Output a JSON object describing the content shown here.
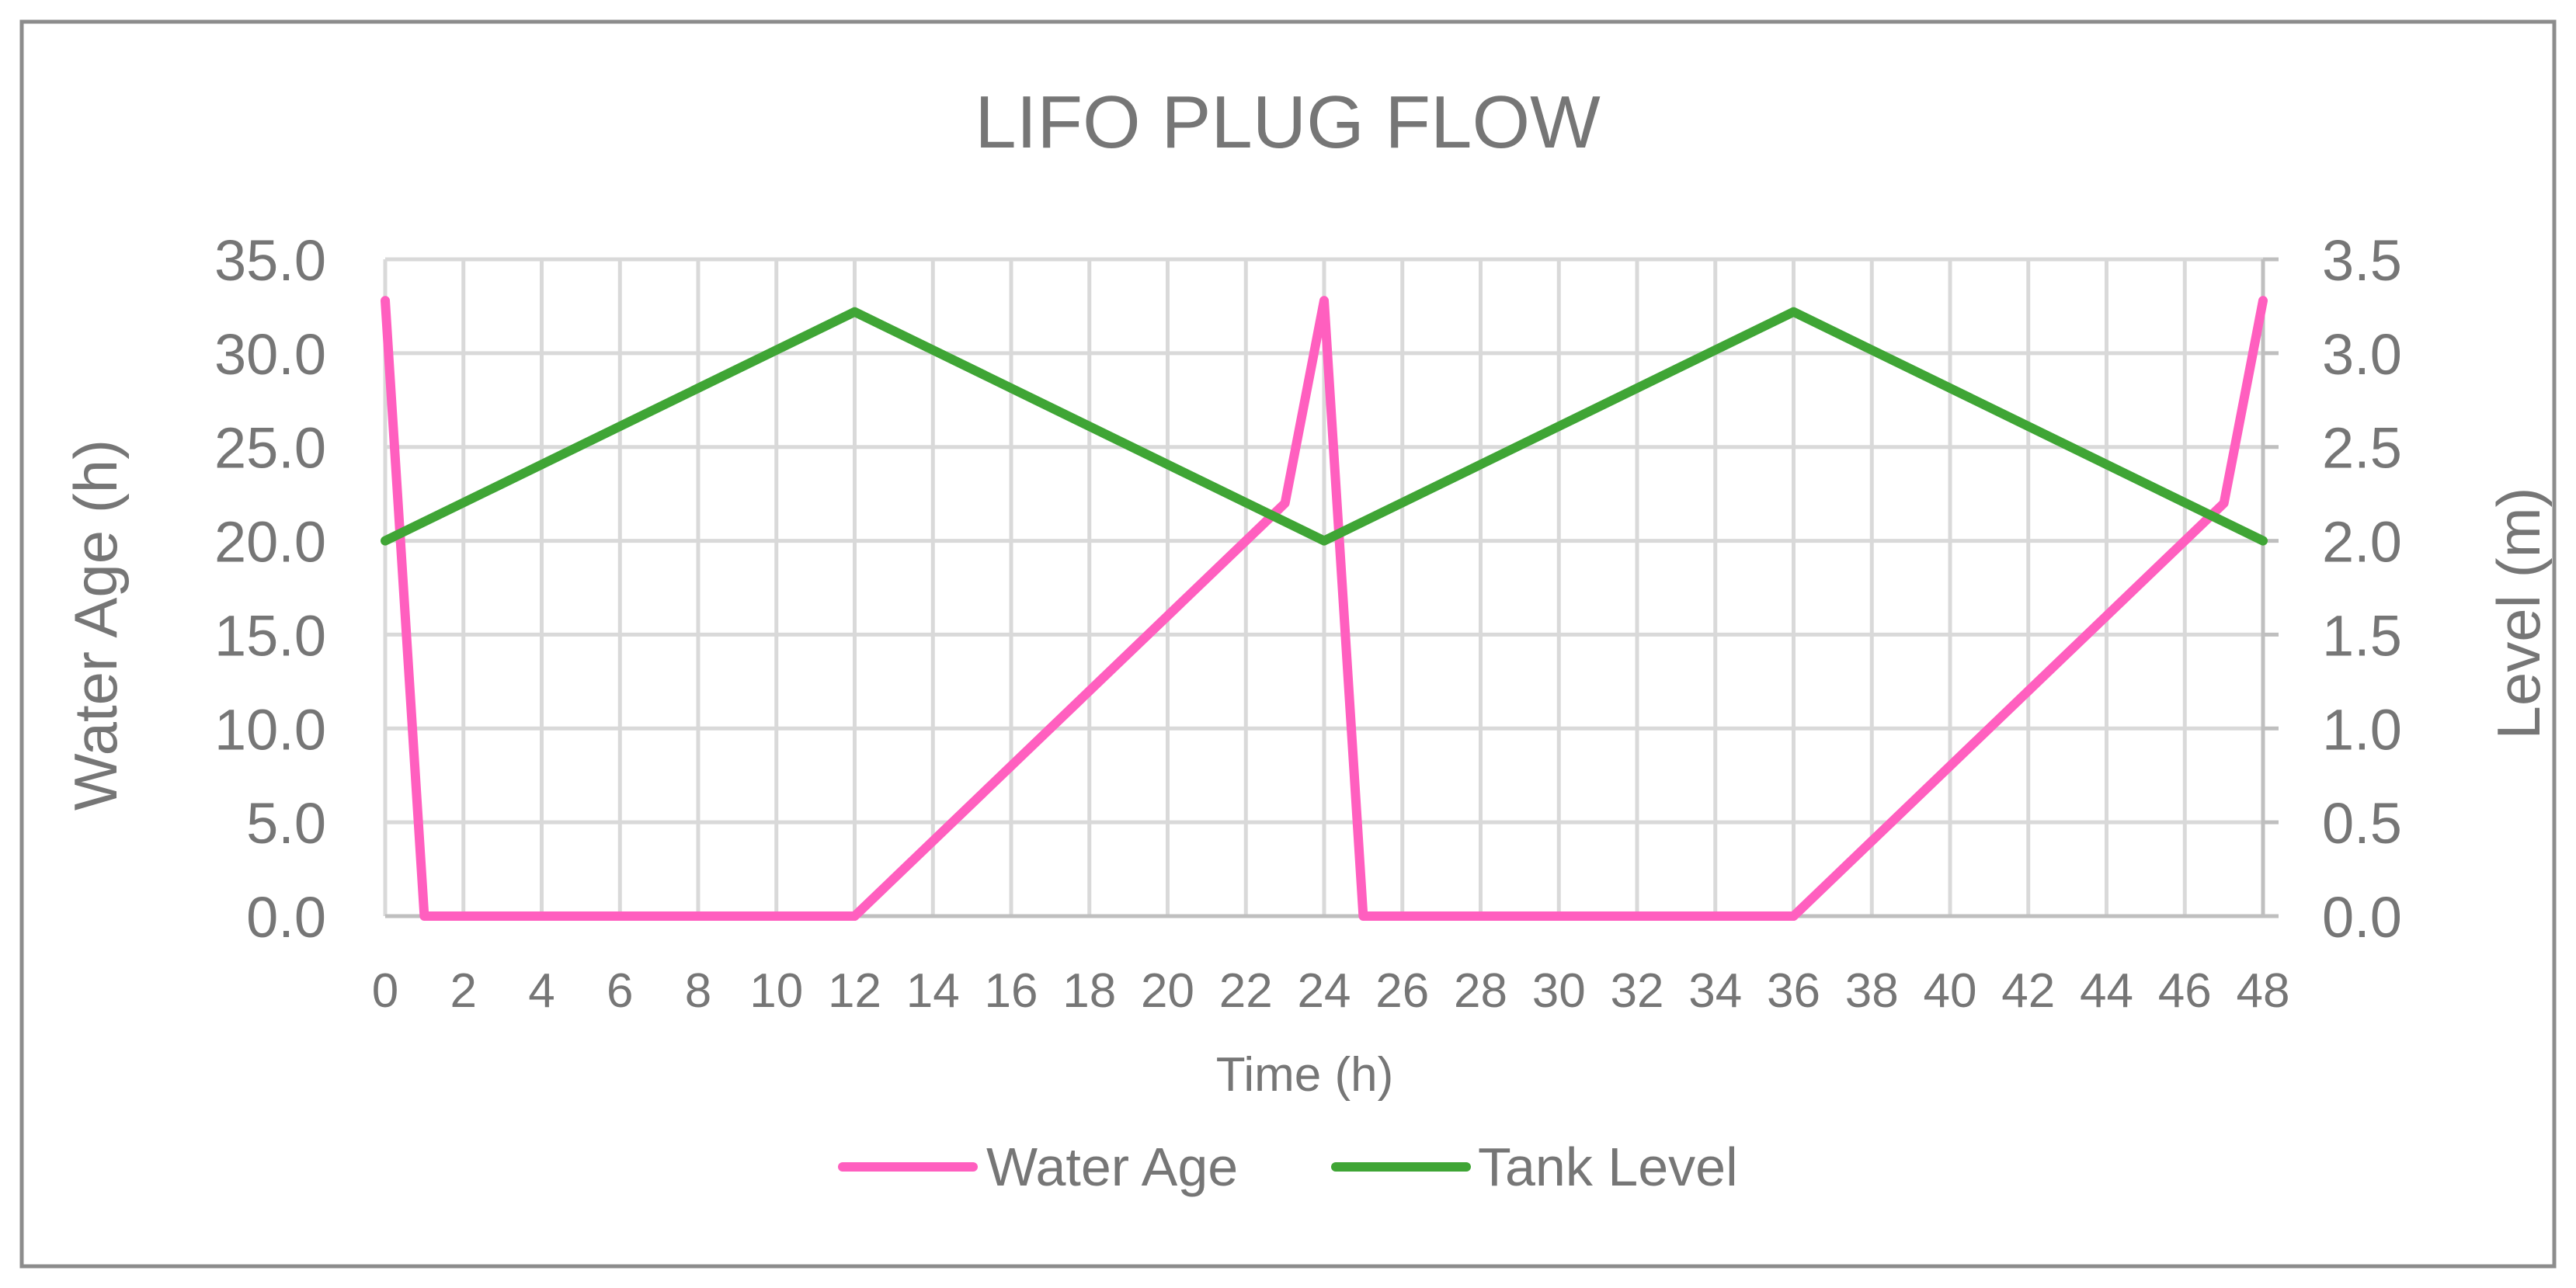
{
  "chart_data": {
    "type": "line",
    "title": "LIFO PLUG FLOW",
    "xlabel": "Time (h)",
    "ylabel_left": "Water Age (h)",
    "ylabel_right": "Level (m)",
    "xlim": [
      0,
      48
    ],
    "x_ticks": [
      0,
      2,
      4,
      6,
      8,
      10,
      12,
      14,
      16,
      18,
      20,
      22,
      24,
      26,
      28,
      30,
      32,
      34,
      36,
      38,
      40,
      42,
      44,
      46,
      48
    ],
    "x_tick_labels": [
      "0",
      "2",
      "4",
      "6",
      "8",
      "10",
      "12",
      "14",
      "16",
      "18",
      "20",
      "22",
      "24",
      "26",
      "28",
      "30",
      "32",
      "34",
      "36",
      "38",
      "40",
      "42",
      "44",
      "46",
      "48"
    ],
    "ylim_left": [
      0,
      35
    ],
    "y_left_tick_labels": [
      "0.0",
      "5.0",
      "10.0",
      "15.0",
      "20.0",
      "25.0",
      "30.0",
      "35.0"
    ],
    "ylim_right": [
      0,
      3.5
    ],
    "y_right_tick_labels": [
      "0.0",
      "0.5",
      "1.0",
      "1.5",
      "2.0",
      "2.5",
      "3.0",
      "3.5"
    ],
    "grid": true,
    "legend_position": "bottom",
    "series": [
      {
        "name": "Water Age",
        "axis": "left",
        "color": "#ff5fbf",
        "x": [
          0,
          1,
          12,
          23,
          24,
          25,
          36,
          47,
          48
        ],
        "y": [
          32.8,
          0,
          0,
          22.0,
          32.8,
          0,
          0,
          22.0,
          32.8
        ]
      },
      {
        "name": "Tank Level",
        "axis": "right",
        "color": "#3fa535",
        "x": [
          0,
          12,
          24,
          36,
          48
        ],
        "y": [
          2.0,
          3.22,
          2.0,
          3.22,
          2.0
        ]
      }
    ]
  }
}
